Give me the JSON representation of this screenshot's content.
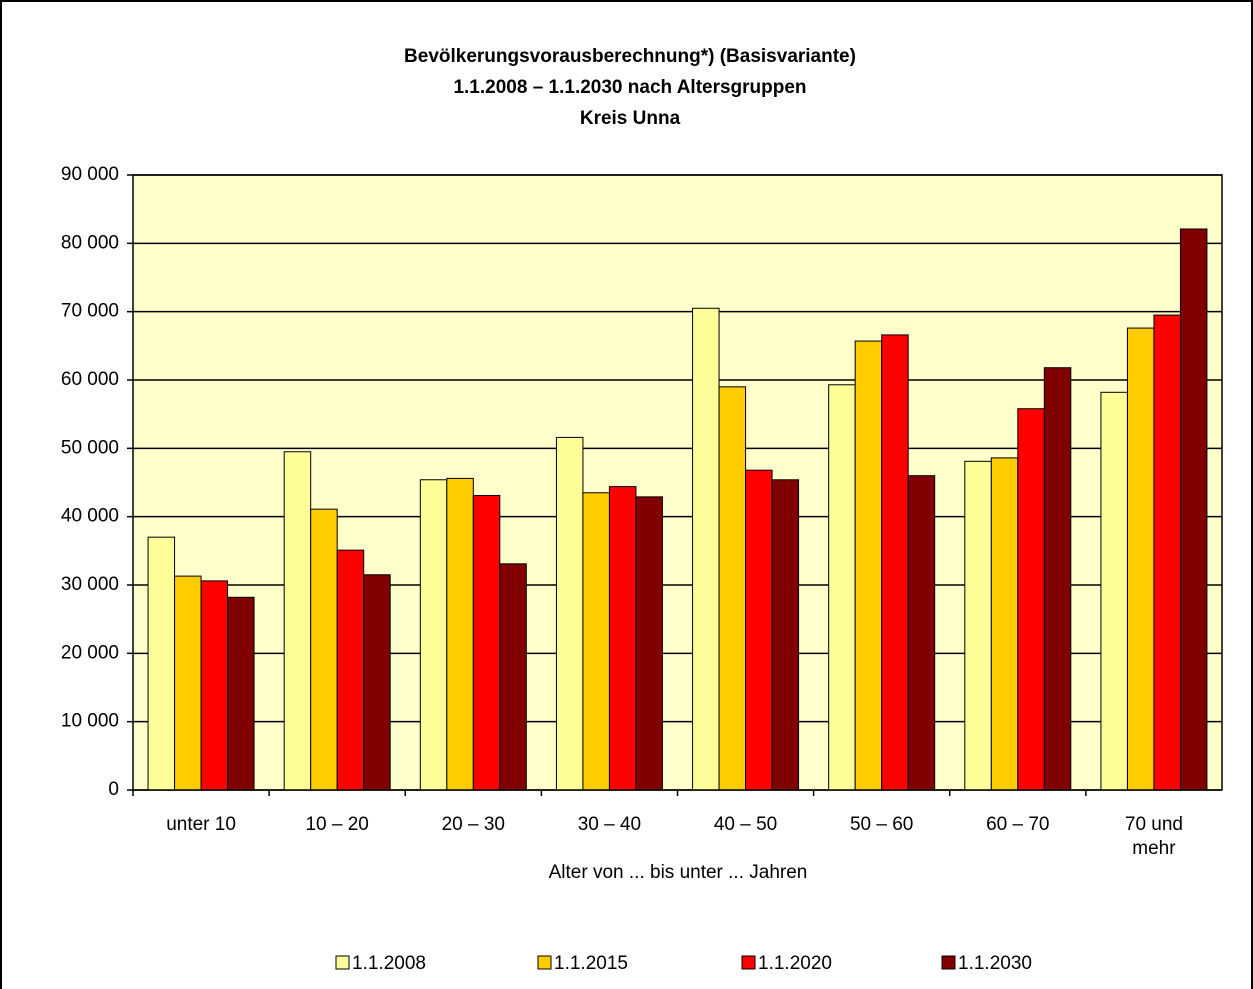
{
  "chart_data": {
    "type": "bar",
    "title": [
      "Bevölkerungsvorausberechnung*) (Basisvariante)",
      "1.1.2008 – 1.1.2030 nach Altersgruppen",
      "Kreis Unna"
    ],
    "xlabel": "Alter von ... bis unter ... Jahren",
    "categories": [
      "unter 10",
      "10 – 20",
      "20 – 30",
      "30 – 40",
      "40 – 50",
      "50 – 60",
      "60 – 70",
      "70 und\nmehr"
    ],
    "series": [
      {
        "name": "1.1.2008",
        "color": "#ffff99",
        "values": [
          37000,
          49500,
          45400,
          51600,
          70500,
          59300,
          48100,
          58200
        ]
      },
      {
        "name": "1.1.2015",
        "color": "#ffcc00",
        "values": [
          31300,
          41100,
          45600,
          43500,
          59000,
          65700,
          48600,
          67600
        ]
      },
      {
        "name": "1.1.2020",
        "color": "#ff0000",
        "values": [
          30600,
          35100,
          43100,
          44400,
          46800,
          66600,
          55800,
          69500
        ]
      },
      {
        "name": "1.1.2030",
        "color": "#800000",
        "values": [
          28200,
          31500,
          33100,
          42900,
          45400,
          46000,
          61800,
          82100
        ]
      }
    ],
    "ylim": [
      0,
      90000
    ],
    "yticks": [
      0,
      {
        "value": 10000,
        "label": "10 000"
      },
      {
        "value": 20000,
        "label": "20 000"
      },
      {
        "value": 30000,
        "label": "30 000"
      },
      {
        "value": 40000,
        "label": "40 000"
      },
      {
        "value": 50000,
        "label": "50 000"
      },
      {
        "value": 60000,
        "label": "60 000"
      },
      {
        "value": 70000,
        "label": "70 000"
      },
      {
        "value": 80000,
        "label": "80 000"
      },
      {
        "value": 90000,
        "label": "90 000"
      }
    ],
    "grid": true,
    "legend": "bottom",
    "plot_background": "#ffffcc"
  }
}
